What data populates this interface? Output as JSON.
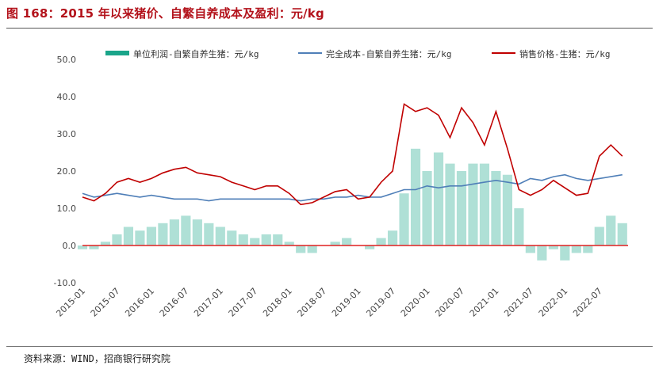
{
  "figure": {
    "title": "图 168：2015 年以来猪价、自繁自养成本及盈利：元/kg",
    "source": "资料来源：WIND，招商银行研究院"
  },
  "chart_data": {
    "type": "line",
    "x_labels": [
      "2015-01",
      "2015-07",
      "2016-01",
      "2016-07",
      "2017-01",
      "2017-07",
      "2018-01",
      "2018-07",
      "2019-01",
      "2019-07",
      "2020-01",
      "2020-07",
      "2021-01",
      "2021-07",
      "2022-01",
      "2022-07"
    ],
    "ylim": [
      -10,
      50
    ],
    "y_ticks": [
      "50.0",
      "40.0",
      "30.0",
      "20.0",
      "10.0",
      "0.0",
      "-10.0"
    ],
    "grid": false,
    "legend_position": "top",
    "colors": {
      "profit": "#1aa58a",
      "cost": "#4f7fb8",
      "price": "#c00000",
      "zero_line": "#e02020"
    },
    "series": [
      {
        "name": "单位利润-自繁自养生猪：元/kg",
        "style": "bar",
        "x": [
          "2015-01",
          "2015-03",
          "2015-05",
          "2015-07",
          "2015-09",
          "2015-11",
          "2016-01",
          "2016-03",
          "2016-05",
          "2016-07",
          "2016-09",
          "2016-11",
          "2017-01",
          "2017-03",
          "2017-05",
          "2017-07",
          "2017-09",
          "2017-11",
          "2018-01",
          "2018-03",
          "2018-05",
          "2018-07",
          "2018-09",
          "2018-11",
          "2019-01",
          "2019-03",
          "2019-05",
          "2019-07",
          "2019-09",
          "2019-11",
          "2020-01",
          "2020-03",
          "2020-05",
          "2020-07",
          "2020-09",
          "2020-11",
          "2021-01",
          "2021-03",
          "2021-05",
          "2021-07",
          "2021-09",
          "2021-11",
          "2022-01",
          "2022-03",
          "2022-05",
          "2022-07",
          "2022-09",
          "2022-11"
        ],
        "values": [
          -1,
          -1,
          1,
          3,
          5,
          4,
          5,
          6,
          7,
          8,
          7,
          6,
          5,
          4,
          3,
          2,
          3,
          3,
          1,
          -2,
          -2,
          0,
          1,
          2,
          0,
          -1,
          2,
          4,
          14,
          26,
          20,
          25,
          22,
          20,
          22,
          22,
          20,
          19,
          10,
          -2,
          -4,
          -1,
          -4,
          -2,
          -2,
          5,
          8,
          6
        ]
      },
      {
        "name": "完全成本-自繁自养生猪：元/kg",
        "style": "line",
        "x": [
          "2015-01",
          "2015-03",
          "2015-05",
          "2015-07",
          "2015-09",
          "2015-11",
          "2016-01",
          "2016-03",
          "2016-05",
          "2016-07",
          "2016-09",
          "2016-11",
          "2017-01",
          "2017-03",
          "2017-05",
          "2017-07",
          "2017-09",
          "2017-11",
          "2018-01",
          "2018-03",
          "2018-05",
          "2018-07",
          "2018-09",
          "2018-11",
          "2019-01",
          "2019-03",
          "2019-05",
          "2019-07",
          "2019-09",
          "2019-11",
          "2020-01",
          "2020-03",
          "2020-05",
          "2020-07",
          "2020-09",
          "2020-11",
          "2021-01",
          "2021-03",
          "2021-05",
          "2021-07",
          "2021-09",
          "2021-11",
          "2022-01",
          "2022-03",
          "2022-05",
          "2022-07",
          "2022-09",
          "2022-11"
        ],
        "values": [
          14,
          13,
          13.5,
          14,
          13.5,
          13,
          13.5,
          13,
          12.5,
          12.5,
          12.5,
          12,
          12.5,
          12.5,
          12.5,
          12.5,
          12.5,
          12.5,
          12.5,
          12,
          12.5,
          12.5,
          13,
          13,
          13.5,
          13,
          13,
          14,
          15,
          15,
          16,
          15.5,
          16,
          16,
          16.5,
          17,
          17.5,
          17,
          16.5,
          18,
          17.5,
          18.5,
          19,
          18,
          17.5,
          18,
          18.5,
          19
        ]
      },
      {
        "name": "销售价格-生猪：元/kg",
        "style": "line",
        "x": [
          "2015-01",
          "2015-03",
          "2015-05",
          "2015-07",
          "2015-09",
          "2015-11",
          "2016-01",
          "2016-03",
          "2016-05",
          "2016-07",
          "2016-09",
          "2016-11",
          "2017-01",
          "2017-03",
          "2017-05",
          "2017-07",
          "2017-09",
          "2017-11",
          "2018-01",
          "2018-03",
          "2018-05",
          "2018-07",
          "2018-09",
          "2018-11",
          "2019-01",
          "2019-03",
          "2019-05",
          "2019-07",
          "2019-09",
          "2019-11",
          "2020-01",
          "2020-03",
          "2020-05",
          "2020-07",
          "2020-09",
          "2020-11",
          "2021-01",
          "2021-03",
          "2021-05",
          "2021-07",
          "2021-09",
          "2021-11",
          "2022-01",
          "2022-03",
          "2022-05",
          "2022-07",
          "2022-09",
          "2022-11"
        ],
        "values": [
          13,
          12,
          14,
          17,
          18,
          17,
          18,
          19.5,
          20.5,
          21,
          19.5,
          19,
          18.5,
          17,
          16,
          15,
          16,
          16,
          14,
          11,
          11.5,
          13,
          14.5,
          15,
          12.5,
          13,
          17,
          20,
          38,
          36,
          37,
          35,
          29,
          37,
          33,
          27,
          36,
          26,
          15,
          13.5,
          15,
          17.5,
          15.5,
          13.5,
          14,
          24,
          27,
          24
        ]
      }
    ]
  }
}
